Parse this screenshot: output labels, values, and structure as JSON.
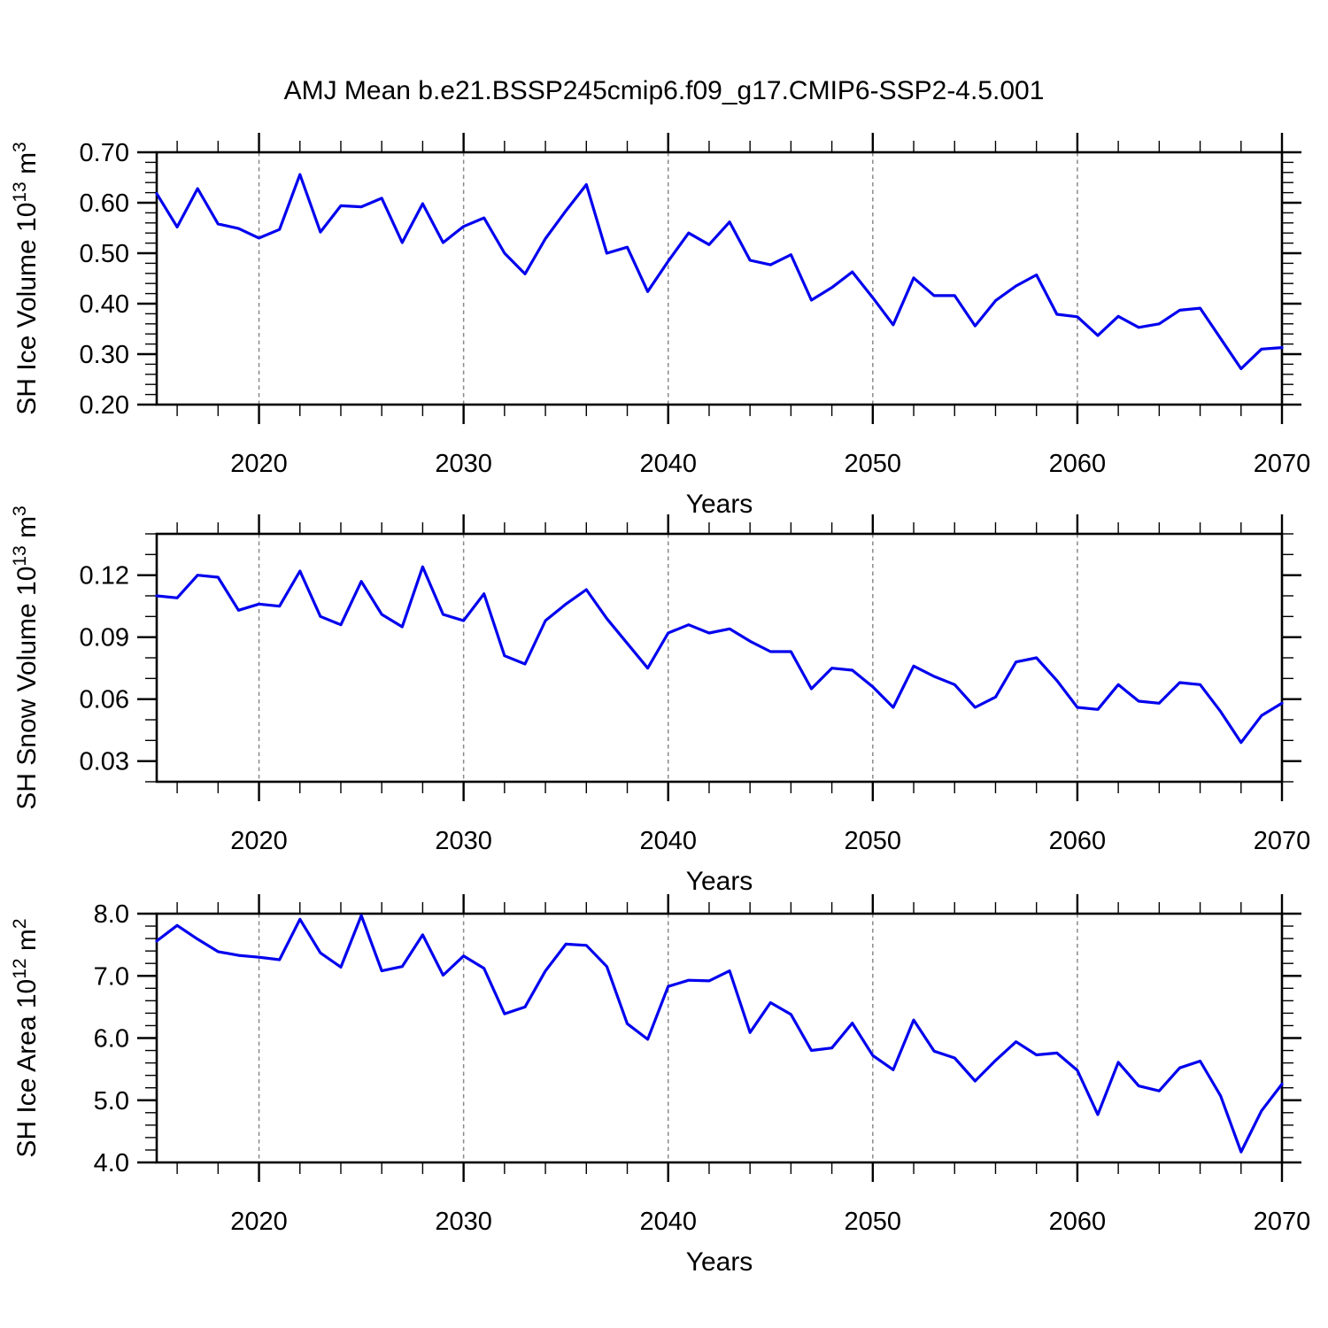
{
  "title": "AMJ Mean b.e21.BSSP245cmip6.f09_g17.CMIP6-SSP2-4.5.001",
  "x_axis": {
    "label": "Years",
    "years_start": 2015,
    "years_end": 2070,
    "major_ticks": [
      2020,
      2030,
      2040,
      2050,
      2060,
      2070
    ],
    "major_tick_labels": [
      "2020",
      "2030",
      "2040",
      "2050",
      "2060",
      "2070"
    ],
    "minor_tick_step": 2,
    "gridline_years": [
      2020,
      2030,
      2040,
      2050,
      2060
    ]
  },
  "style": {
    "line_color": "#0000ee",
    "grid_color": "#8a8a8a",
    "axis_color": "#000000",
    "text_color": "#000000"
  },
  "chart_data": [
    {
      "type": "line",
      "name": "sh-ice-volume",
      "ylabel_parts": [
        {
          "t": "SH Ice Volume 10",
          "sup": false
        },
        {
          "t": "13",
          "sup": true
        },
        {
          "t": " m",
          "sup": false
        },
        {
          "t": "3",
          "sup": true
        }
      ],
      "xlabel": "Years",
      "ylim": [
        0.2,
        0.7
      ],
      "ytick_values": [
        0.2,
        0.3,
        0.4,
        0.5,
        0.6,
        0.7
      ],
      "ytick_labels": [
        "0.20",
        "0.30",
        "0.40",
        "0.50",
        "0.60",
        "0.70"
      ],
      "ytick_minor_step": 0.02,
      "x": [
        2015,
        2016,
        2017,
        2018,
        2019,
        2020,
        2021,
        2022,
        2023,
        2024,
        2025,
        2026,
        2027,
        2028,
        2029,
        2030,
        2031,
        2032,
        2033,
        2034,
        2035,
        2036,
        2037,
        2038,
        2039,
        2040,
        2041,
        2042,
        2043,
        2044,
        2045,
        2046,
        2047,
        2048,
        2049,
        2050,
        2051,
        2052,
        2053,
        2054,
        2055,
        2056,
        2057,
        2058,
        2059,
        2060,
        2061,
        2062,
        2063,
        2064,
        2065,
        2066,
        2067,
        2068,
        2069,
        2070
      ],
      "values": [
        0.618,
        0.552,
        0.628,
        0.558,
        0.549,
        0.53,
        0.547,
        0.656,
        0.542,
        0.594,
        0.592,
        0.609,
        0.521,
        0.598,
        0.521,
        0.553,
        0.57,
        0.5,
        0.459,
        0.529,
        0.584,
        0.636,
        0.5,
        0.512,
        0.424,
        0.484,
        0.54,
        0.517,
        0.562,
        0.486,
        0.477,
        0.497,
        0.407,
        0.432,
        0.463,
        0.412,
        0.358,
        0.451,
        0.416,
        0.416,
        0.356,
        0.406,
        0.435,
        0.457,
        0.379,
        0.374,
        0.337,
        0.375,
        0.353,
        0.36,
        0.387,
        0.391,
        0.331,
        0.271,
        0.31,
        0.313
      ]
    },
    {
      "type": "line",
      "name": "sh-snow-volume",
      "ylabel_parts": [
        {
          "t": "SH Snow Volume 10",
          "sup": false
        },
        {
          "t": "13",
          "sup": true
        },
        {
          "t": " m",
          "sup": false
        },
        {
          "t": "3",
          "sup": true
        }
      ],
      "xlabel": "Years",
      "ylim": [
        0.02,
        0.14
      ],
      "ytick_values": [
        0.03,
        0.06,
        0.09,
        0.12
      ],
      "ytick_labels": [
        "0.03",
        "0.06",
        "0.09",
        "0.12"
      ],
      "ytick_minor_step": 0.01,
      "x": [
        2015,
        2016,
        2017,
        2018,
        2019,
        2020,
        2021,
        2022,
        2023,
        2024,
        2025,
        2026,
        2027,
        2028,
        2029,
        2030,
        2031,
        2032,
        2033,
        2034,
        2035,
        2036,
        2037,
        2038,
        2039,
        2040,
        2041,
        2042,
        2043,
        2044,
        2045,
        2046,
        2047,
        2048,
        2049,
        2050,
        2051,
        2052,
        2053,
        2054,
        2055,
        2056,
        2057,
        2058,
        2059,
        2060,
        2061,
        2062,
        2063,
        2064,
        2065,
        2066,
        2067,
        2068,
        2069,
        2070
      ],
      "values": [
        0.11,
        0.109,
        0.12,
        0.119,
        0.103,
        0.106,
        0.105,
        0.122,
        0.1,
        0.096,
        0.117,
        0.101,
        0.095,
        0.124,
        0.101,
        0.098,
        0.111,
        0.081,
        0.077,
        0.098,
        0.106,
        0.113,
        0.099,
        0.087,
        0.075,
        0.092,
        0.096,
        0.092,
        0.094,
        0.088,
        0.083,
        0.083,
        0.065,
        0.075,
        0.074,
        0.066,
        0.056,
        0.076,
        0.071,
        0.067,
        0.056,
        0.061,
        0.078,
        0.08,
        0.069,
        0.056,
        0.055,
        0.067,
        0.059,
        0.058,
        0.068,
        0.067,
        0.054,
        0.039,
        0.052,
        0.058
      ]
    },
    {
      "type": "line",
      "name": "sh-ice-area",
      "ylabel_parts": [
        {
          "t": "SH Ice Area 10",
          "sup": false
        },
        {
          "t": "12",
          "sup": true
        },
        {
          "t": " m",
          "sup": false
        },
        {
          "t": "2",
          "sup": true
        }
      ],
      "xlabel": "Years",
      "ylim": [
        4.0,
        8.0
      ],
      "ytick_values": [
        4.0,
        5.0,
        6.0,
        7.0,
        8.0
      ],
      "ytick_labels": [
        "4.0",
        "5.0",
        "6.0",
        "7.0",
        "8.0"
      ],
      "ytick_minor_step": 0.2,
      "x": [
        2015,
        2016,
        2017,
        2018,
        2019,
        2020,
        2021,
        2022,
        2023,
        2024,
        2025,
        2026,
        2027,
        2028,
        2029,
        2030,
        2031,
        2032,
        2033,
        2034,
        2035,
        2036,
        2037,
        2038,
        2039,
        2040,
        2041,
        2042,
        2043,
        2044,
        2045,
        2046,
        2047,
        2048,
        2049,
        2050,
        2051,
        2052,
        2053,
        2054,
        2055,
        2056,
        2057,
        2058,
        2059,
        2060,
        2061,
        2062,
        2063,
        2064,
        2065,
        2066,
        2067,
        2068,
        2069,
        2070
      ],
      "values": [
        7.56,
        7.81,
        7.59,
        7.39,
        7.33,
        7.3,
        7.26,
        7.91,
        7.37,
        7.14,
        7.97,
        7.08,
        7.15,
        7.66,
        7.01,
        7.32,
        7.12,
        6.39,
        6.5,
        7.08,
        7.51,
        7.49,
        7.15,
        6.23,
        5.98,
        6.83,
        6.93,
        6.92,
        7.08,
        6.09,
        6.57,
        6.38,
        5.8,
        5.84,
        6.24,
        5.72,
        5.49,
        6.29,
        5.79,
        5.68,
        5.31,
        5.64,
        5.94,
        5.73,
        5.76,
        5.48,
        4.77,
        5.61,
        5.23,
        5.15,
        5.52,
        5.63,
        5.07,
        4.17,
        4.83,
        5.26
      ]
    }
  ]
}
